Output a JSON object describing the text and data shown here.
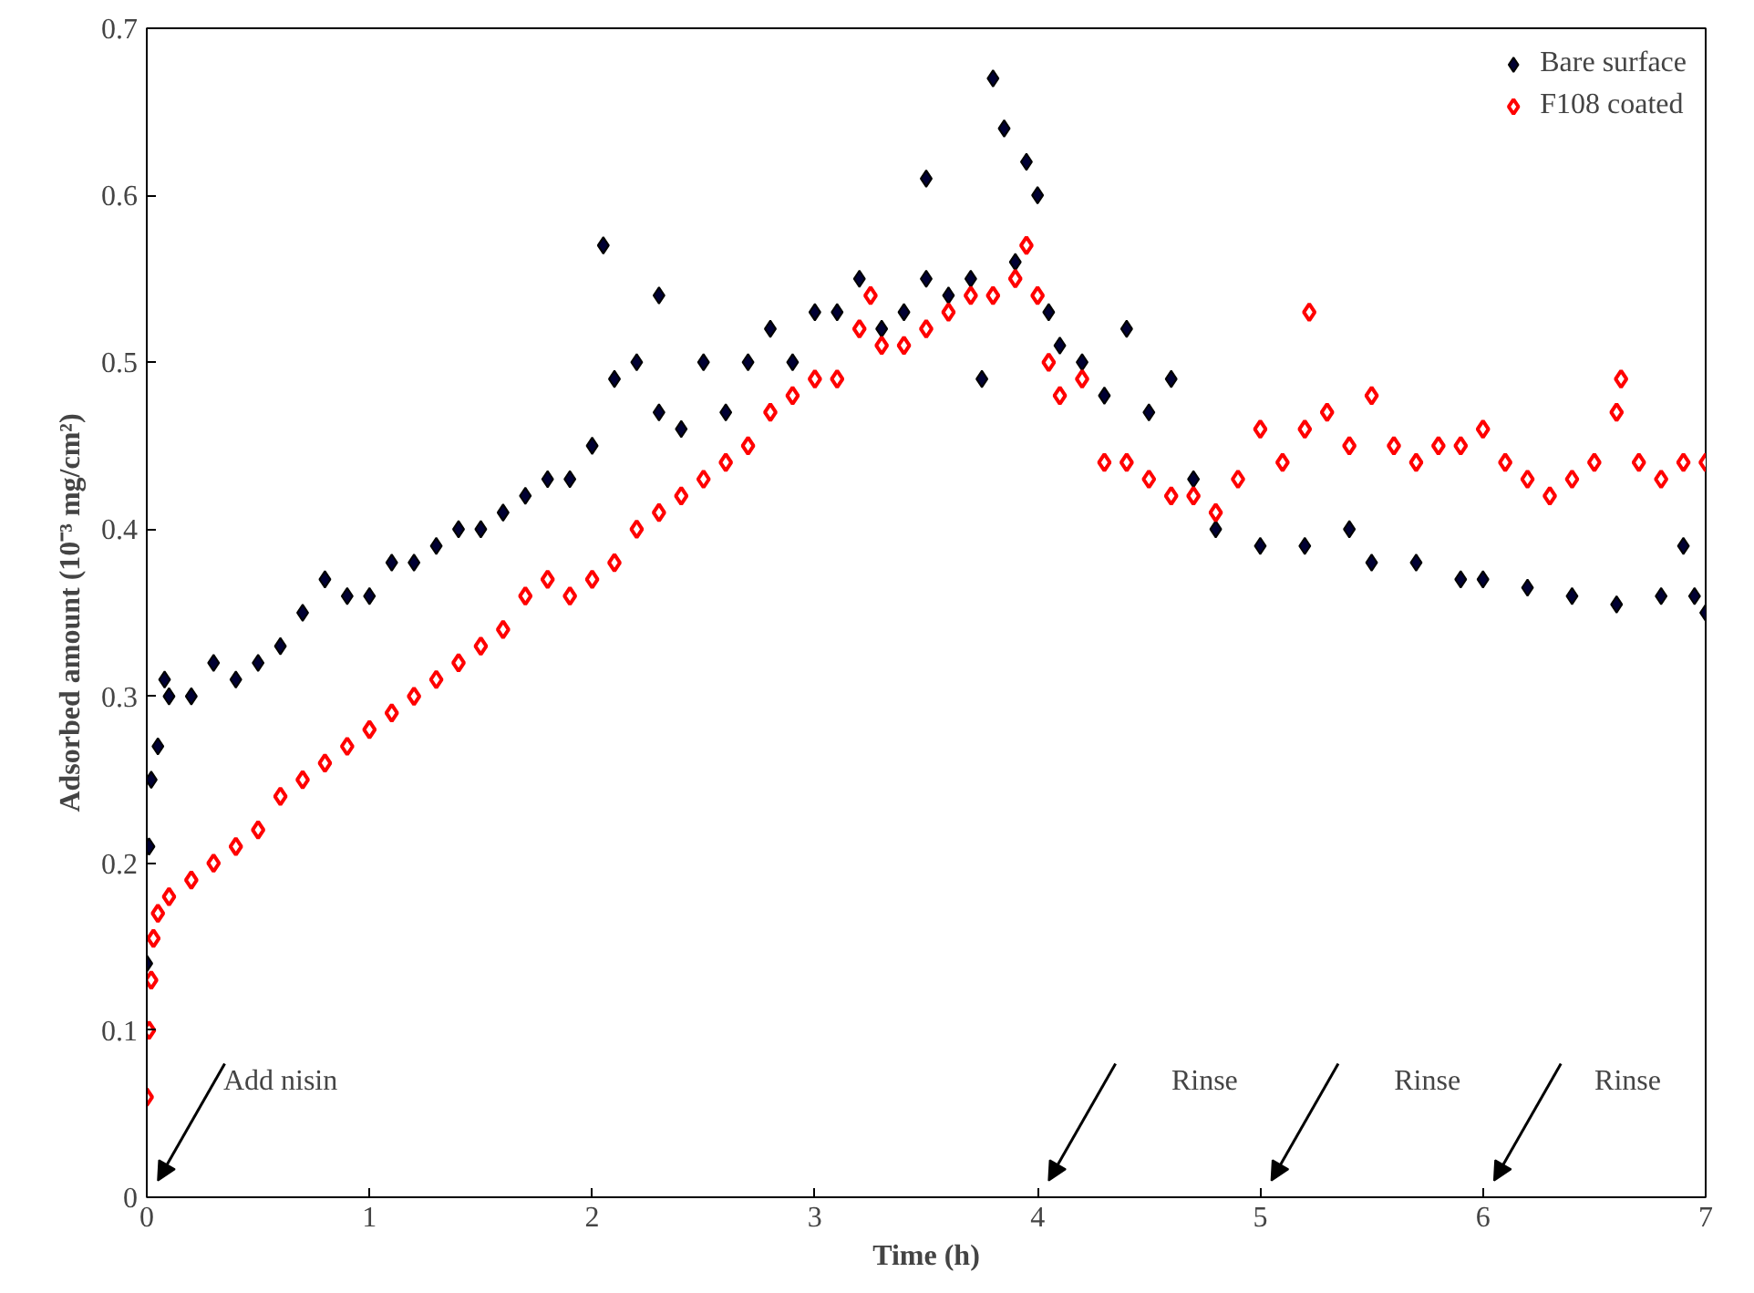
{
  "chart_data": {
    "type": "scatter",
    "xlabel": "Time (h)",
    "ylabel": "Adsorbed amount (10⁻³ mg/cm²)",
    "xlim": [
      0,
      7
    ],
    "ylim": [
      0,
      0.7
    ],
    "xticks": [
      0,
      1,
      2,
      3,
      4,
      5,
      6,
      7
    ],
    "yticks": [
      0,
      0.1,
      0.2,
      0.3,
      0.4,
      0.5,
      0.6,
      0.7
    ],
    "grid": false,
    "legend": "top right",
    "marker": "diamond",
    "series": [
      {
        "name": "Bare surface",
        "color": "#000033",
        "x": [
          0,
          0.01,
          0.02,
          0.05,
          0.08,
          0.1,
          0.2,
          0.3,
          0.4,
          0.5,
          0.6,
          0.7,
          0.8,
          0.9,
          1.0,
          1.1,
          1.2,
          1.3,
          1.4,
          1.5,
          1.6,
          1.7,
          1.8,
          1.9,
          2.0,
          2.05,
          2.1,
          2.2,
          2.3,
          2.3,
          2.4,
          2.5,
          2.6,
          2.7,
          2.8,
          2.9,
          3.0,
          3.1,
          3.2,
          3.3,
          3.4,
          3.5,
          3.5,
          3.6,
          3.7,
          3.75,
          3.8,
          3.85,
          3.9,
          3.95,
          4.0,
          4.05,
          4.1,
          4.2,
          4.3,
          4.4,
          4.5,
          4.6,
          4.7,
          4.8,
          5.0,
          5.2,
          5.4,
          5.5,
          5.7,
          5.9,
          6.0,
          6.2,
          6.4,
          6.6,
          6.8,
          6.9,
          6.95,
          7.0
        ],
        "values": [
          0.14,
          0.21,
          0.25,
          0.27,
          0.31,
          0.3,
          0.3,
          0.32,
          0.31,
          0.32,
          0.33,
          0.35,
          0.37,
          0.36,
          0.36,
          0.38,
          0.38,
          0.39,
          0.4,
          0.4,
          0.41,
          0.42,
          0.43,
          0.43,
          0.45,
          0.57,
          0.49,
          0.5,
          0.54,
          0.47,
          0.46,
          0.5,
          0.47,
          0.5,
          0.52,
          0.5,
          0.53,
          0.53,
          0.55,
          0.52,
          0.53,
          0.61,
          0.55,
          0.54,
          0.55,
          0.49,
          0.67,
          0.64,
          0.56,
          0.62,
          0.6,
          0.53,
          0.51,
          0.5,
          0.48,
          0.52,
          0.47,
          0.49,
          0.43,
          0.4,
          0.39,
          0.39,
          0.4,
          0.38,
          0.38,
          0.37,
          0.37,
          0.365,
          0.36,
          0.355,
          0.36,
          0.39,
          0.36,
          0.35
        ]
      },
      {
        "name": "F108 coated",
        "color": "#ff0000",
        "x": [
          0,
          0.01,
          0.02,
          0.03,
          0.05,
          0.1,
          0.2,
          0.3,
          0.4,
          0.5,
          0.6,
          0.7,
          0.8,
          0.9,
          1.0,
          1.1,
          1.2,
          1.3,
          1.4,
          1.5,
          1.6,
          1.7,
          1.8,
          1.9,
          2.0,
          2.1,
          2.2,
          2.3,
          2.4,
          2.5,
          2.6,
          2.7,
          2.8,
          2.9,
          3.0,
          3.1,
          3.2,
          3.25,
          3.3,
          3.4,
          3.5,
          3.6,
          3.7,
          3.8,
          3.9,
          3.95,
          4.0,
          4.05,
          4.1,
          4.2,
          4.3,
          4.4,
          4.5,
          4.6,
          4.7,
          4.8,
          4.9,
          5.0,
          5.1,
          5.2,
          5.22,
          5.3,
          5.4,
          5.5,
          5.6,
          5.7,
          5.8,
          5.9,
          6.0,
          6.1,
          6.2,
          6.3,
          6.4,
          6.5,
          6.6,
          6.62,
          6.7,
          6.8,
          6.9,
          7.0
        ],
        "values": [
          0.06,
          0.1,
          0.13,
          0.155,
          0.17,
          0.18,
          0.19,
          0.2,
          0.21,
          0.22,
          0.24,
          0.25,
          0.26,
          0.27,
          0.28,
          0.29,
          0.3,
          0.31,
          0.32,
          0.33,
          0.34,
          0.36,
          0.37,
          0.36,
          0.37,
          0.38,
          0.4,
          0.41,
          0.42,
          0.43,
          0.44,
          0.45,
          0.47,
          0.48,
          0.49,
          0.49,
          0.52,
          0.54,
          0.51,
          0.51,
          0.52,
          0.53,
          0.54,
          0.54,
          0.55,
          0.57,
          0.54,
          0.5,
          0.48,
          0.49,
          0.44,
          0.44,
          0.43,
          0.42,
          0.42,
          0.41,
          0.43,
          0.46,
          0.44,
          0.46,
          0.53,
          0.47,
          0.45,
          0.48,
          0.45,
          0.44,
          0.45,
          0.45,
          0.46,
          0.44,
          0.43,
          0.42,
          0.43,
          0.44,
          0.47,
          0.49,
          0.44,
          0.43,
          0.44,
          0.44
        ]
      }
    ],
    "annotations": [
      "Add nisin",
      "Rinse",
      "Rinse",
      "Rinse"
    ]
  }
}
